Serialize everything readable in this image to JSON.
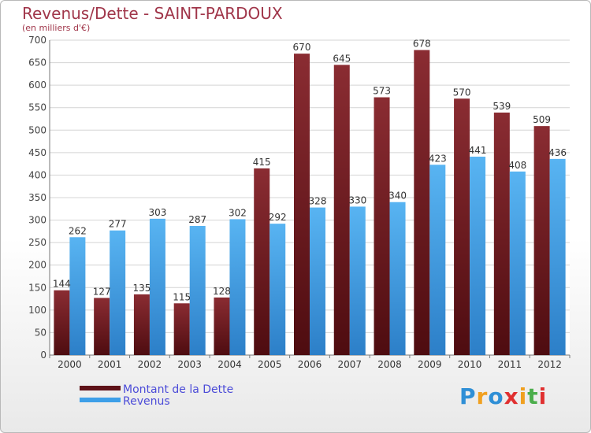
{
  "chart_data": {
    "type": "bar",
    "title": "Revenus/Dette - SAINT-PARDOUX",
    "subtitle": "(en milliers d'€)",
    "categories": [
      "2000",
      "2001",
      "2002",
      "2003",
      "2004",
      "2005",
      "2006",
      "2007",
      "2008",
      "2009",
      "2010",
      "2011",
      "2012"
    ],
    "series": [
      {
        "name": "Montant de la Dette",
        "color": "#6e1f24",
        "values": [
          144,
          127,
          135,
          115,
          128,
          415,
          670,
          645,
          573,
          678,
          570,
          539,
          509
        ]
      },
      {
        "name": "Revenus",
        "color": "#3d9fe8",
        "values": [
          262,
          277,
          303,
          287,
          302,
          292,
          328,
          330,
          340,
          423,
          441,
          408,
          436
        ]
      }
    ],
    "ylim": [
      0,
      700
    ],
    "yticks": [
      0,
      50,
      100,
      150,
      200,
      250,
      300,
      350,
      400,
      450,
      500,
      550,
      600,
      650,
      700
    ],
    "grid": true,
    "legend_position": "bottom-left"
  },
  "logo": {
    "letters": [
      "P",
      "r",
      "o",
      "x",
      "i",
      "t",
      "i"
    ],
    "colors": [
      "#2f8fd6",
      "#f0a020",
      "#2f8fd6",
      "#e03030",
      "#f0a020",
      "#4cae4c",
      "#e03030"
    ]
  }
}
